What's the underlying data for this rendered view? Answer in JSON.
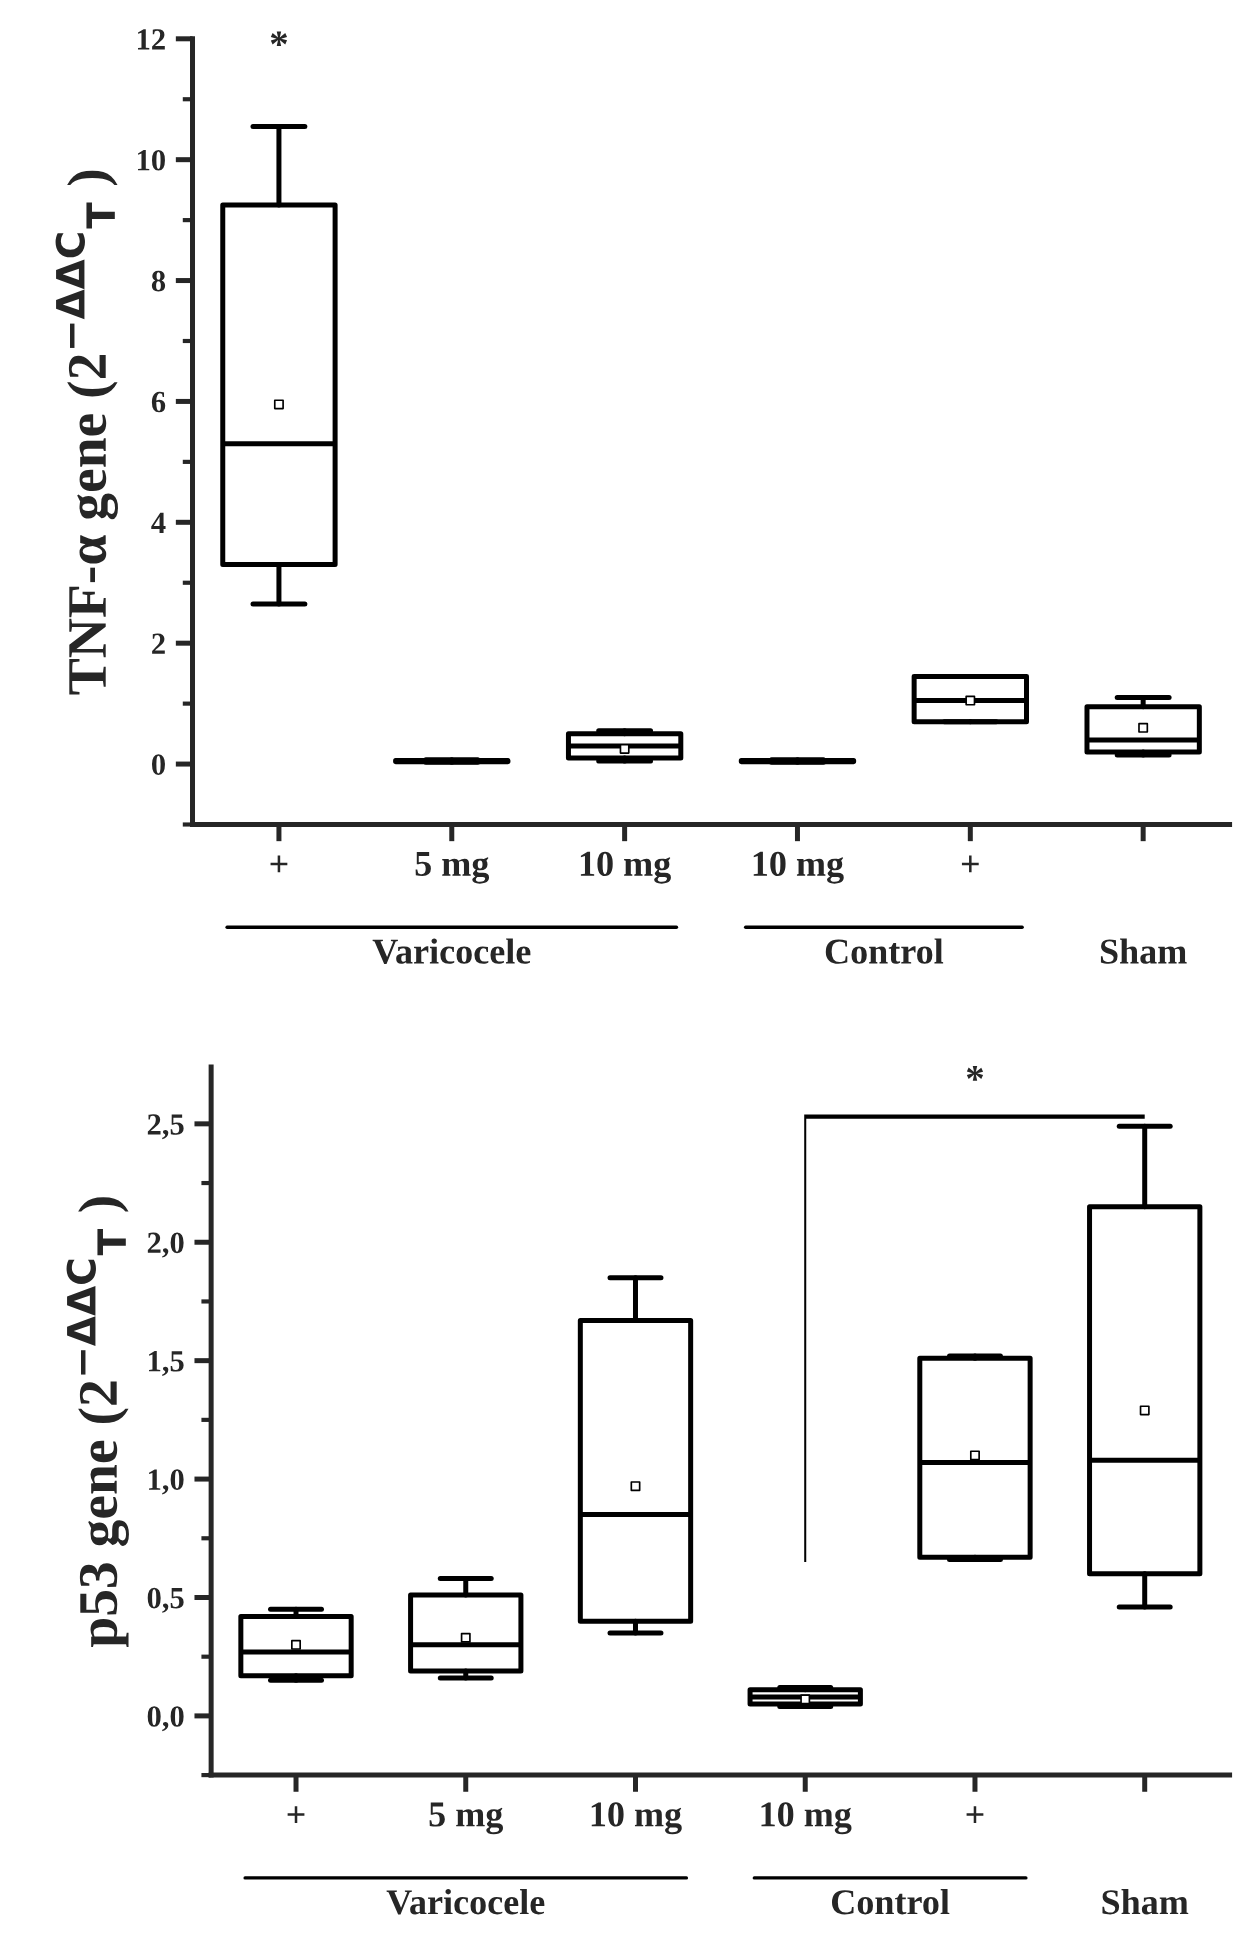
{
  "chart_data": [
    {
      "type": "box",
      "ylabel": "TNF-α gene (2$^{−ΔΔC}$$_{T}$ )",
      "categories": [
        "+",
        "5 mg",
        "10 mg",
        "10 mg",
        "+",
        null
      ],
      "boxes": [
        {
          "low": 2.65,
          "q1": 3.3,
          "median": 5.3,
          "q3": 9.25,
          "high": 10.55,
          "mean": 5.95
        },
        {
          "low": 0.03,
          "q1": 0.04,
          "median": 0.05,
          "q3": 0.06,
          "high": 0.07
        },
        {
          "low": 0.05,
          "q1": 0.1,
          "median": 0.3,
          "q3": 0.5,
          "high": 0.55,
          "mean": 0.25
        },
        {
          "low": 0.03,
          "q1": 0.04,
          "median": 0.05,
          "q3": 0.06,
          "high": 0.07
        },
        {
          "low": 0.7,
          "q1": 0.7,
          "median": 1.05,
          "q3": 1.45,
          "high": 1.45,
          "mean": 1.05
        },
        {
          "low": 0.15,
          "q1": 0.2,
          "median": 0.4,
          "q3": 0.95,
          "high": 1.1,
          "mean": 0.6
        }
      ],
      "ylim": [
        -1,
        12
      ],
      "yticks": [
        0,
        2,
        4,
        6,
        8,
        10,
        12
      ],
      "annotations": [
        "Varicocele",
        "Control",
        "Sham",
        "*"
      ]
    },
    {
      "type": "box",
      "ylabel": "p53 gene (2$^{−ΔΔC}$$_{T}$ )",
      "categories": [
        "+",
        "5 mg",
        "10 mg",
        "10 mg",
        "+",
        null
      ],
      "boxes": [
        {
          "low": 0.15,
          "q1": 0.17,
          "median": 0.27,
          "q3": 0.42,
          "high": 0.45,
          "mean": 0.3
        },
        {
          "low": 0.16,
          "q1": 0.19,
          "median": 0.3,
          "q3": 0.51,
          "high": 0.58,
          "mean": 0.33
        },
        {
          "low": 0.35,
          "q1": 0.4,
          "median": 0.85,
          "q3": 1.67,
          "high": 1.85,
          "mean": 0.97
        },
        {
          "low": 0.04,
          "q1": 0.05,
          "median": 0.08,
          "q3": 0.11,
          "high": 0.12,
          "mean": 0.07
        },
        {
          "low": 0.66,
          "q1": 0.67,
          "median": 1.07,
          "q3": 1.51,
          "high": 1.52,
          "mean": 1.1
        },
        {
          "low": 0.46,
          "q1": 0.6,
          "median": 1.08,
          "q3": 2.15,
          "high": 2.49,
          "mean": 1.29
        }
      ],
      "ylim": [
        -0.25,
        2.74
      ],
      "yticks": [
        {
          "value": 0,
          "label": "0,0"
        },
        {
          "value": 0.5,
          "label": "0,5"
        },
        {
          "value": 1,
          "label": "1,0"
        },
        {
          "value": 1.5,
          "label": "1,5"
        },
        {
          "value": 2,
          "label": "2,0"
        },
        {
          "value": 2.5,
          "label": "2,5"
        }
      ],
      "annotations": [
        "Varicocele",
        "Control",
        "Sham",
        "*"
      ]
    }
  ]
}
